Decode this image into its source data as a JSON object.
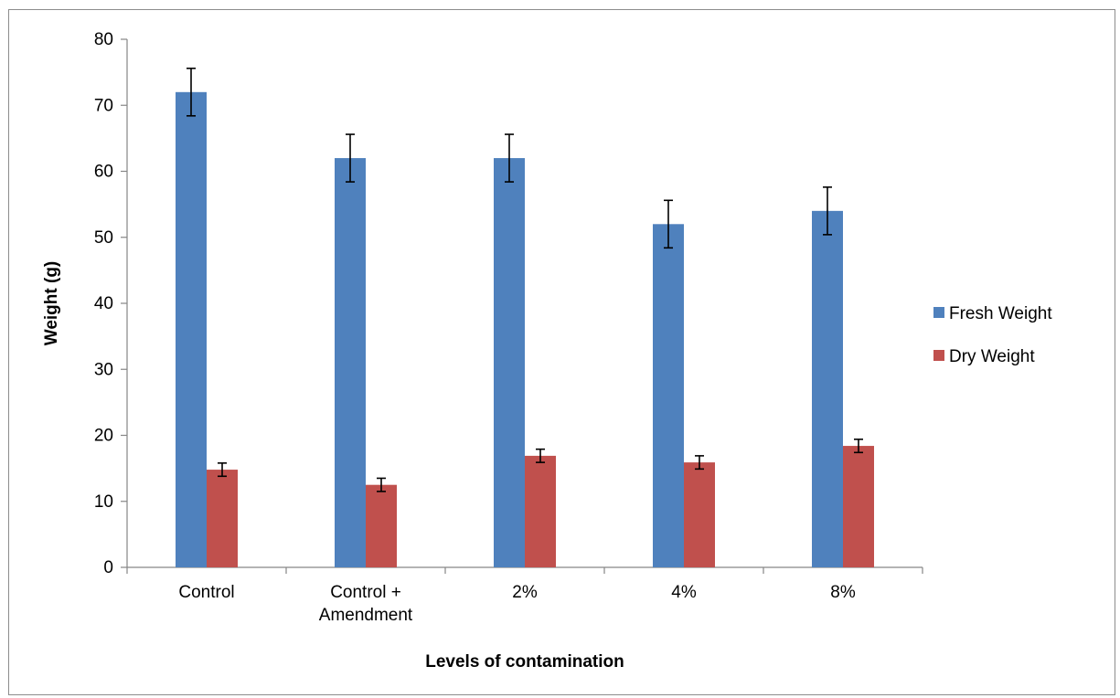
{
  "chart_data": {
    "type": "bar",
    "title": "",
    "xlabel": "Levels of contamination",
    "ylabel": "Weight (g)",
    "ylim": [
      0,
      80
    ],
    "yticks": [
      0,
      10,
      20,
      30,
      40,
      50,
      60,
      70,
      80
    ],
    "categories": [
      [
        "Control"
      ],
      [
        "Control +",
        "Amendment"
      ],
      [
        "2%"
      ],
      [
        "4%"
      ],
      [
        "8%"
      ]
    ],
    "series": [
      {
        "name": "Fresh Weight",
        "color": "#4f81bd",
        "values": [
          72,
          62,
          62,
          52,
          54
        ],
        "errors": [
          3.6,
          3.6,
          3.6,
          3.6,
          3.6
        ]
      },
      {
        "name": "Dry Weight",
        "color": "#c0504d",
        "values": [
          14.8,
          12.5,
          16.9,
          15.9,
          18.4
        ],
        "errors": [
          1.0,
          1.0,
          1.0,
          1.0,
          1.0
        ]
      }
    ],
    "grid": false,
    "legend_position": "right"
  }
}
